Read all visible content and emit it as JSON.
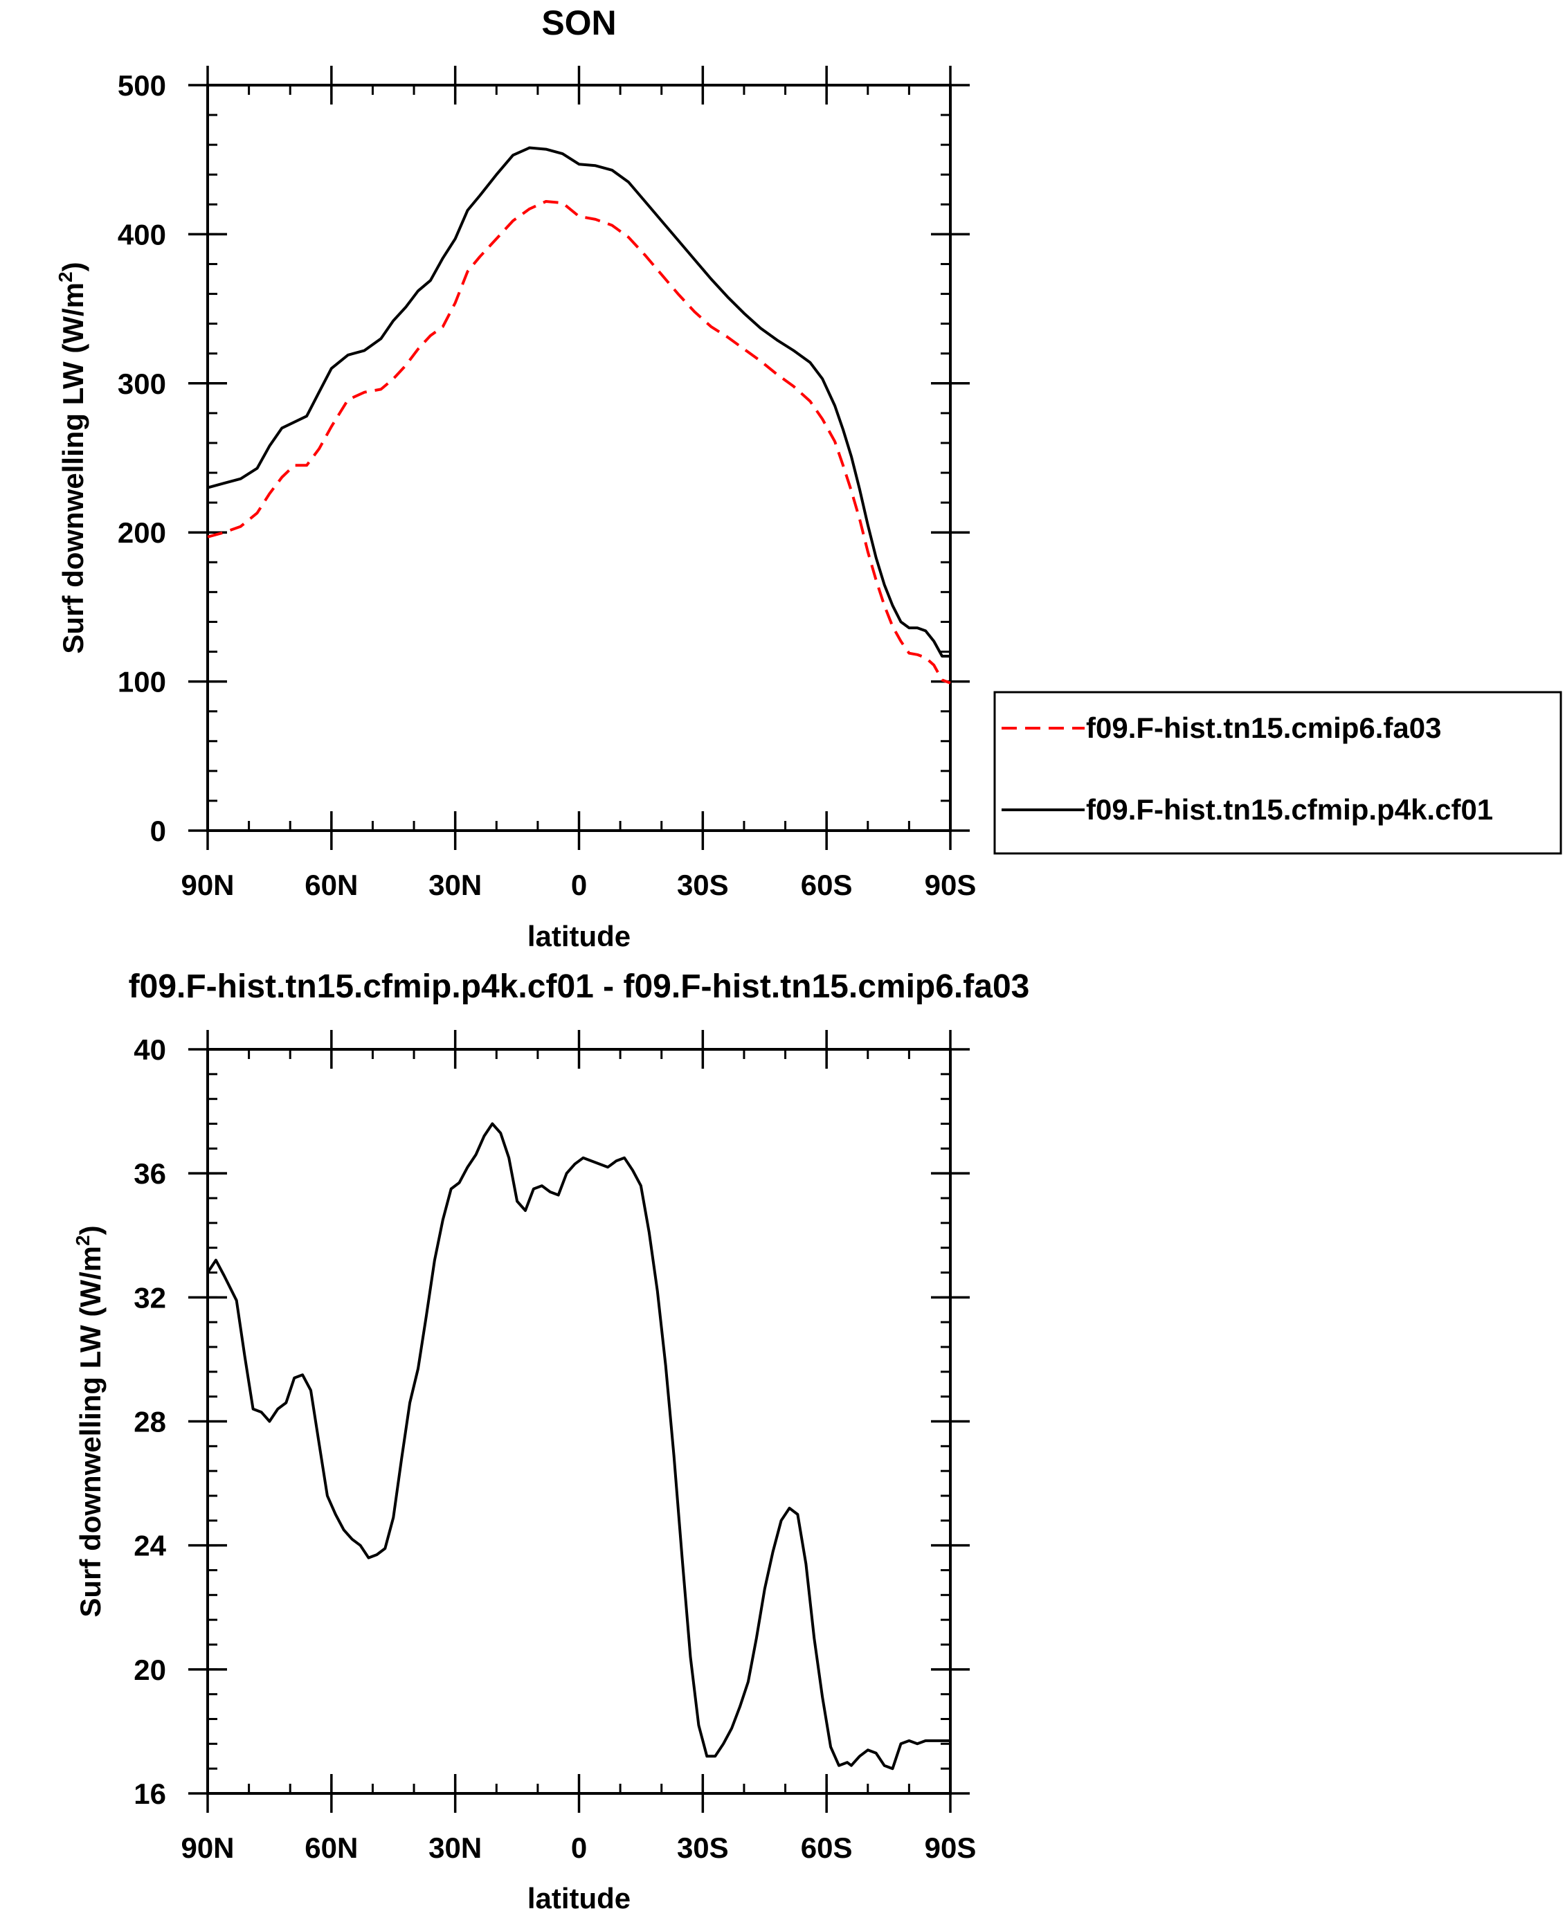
{
  "chart_data": [
    {
      "type": "line",
      "title": "SON",
      "xlabel": "latitude",
      "ylabel_main": "Surf downwelling LW (W/m",
      "ylabel_sup": "2",
      "ylabel_close": ")",
      "xlim": [
        90,
        -90
      ],
      "ylim": [
        0,
        500
      ],
      "xticks": [
        90,
        60,
        30,
        0,
        -30,
        -60,
        -90
      ],
      "xtick_labels": [
        "90N",
        "60N",
        "30N",
        "0",
        "30S",
        "60S",
        "90S"
      ],
      "yticks": [
        0,
        100,
        200,
        300,
        400,
        500
      ],
      "ytick_labels": [
        "0",
        "100",
        "200",
        "300",
        "400",
        "500"
      ],
      "legend_position": "right-outside",
      "series": [
        {
          "name": "f09.F-hist.tn15.cmip6.fa03",
          "color": "#ff0000",
          "dash": "dashed",
          "x": [
            90,
            86,
            82,
            78,
            75,
            72,
            69,
            66,
            63,
            60,
            56,
            52,
            48,
            45,
            42,
            39,
            36,
            33,
            30,
            27,
            24,
            20,
            16,
            12,
            8,
            4,
            0,
            -4,
            -8,
            -12,
            -16,
            -20,
            -24,
            -28,
            -32,
            -36,
            -40,
            -44,
            -48,
            -52,
            -56,
            -59,
            -62,
            -64,
            -66,
            -68,
            -70,
            -72,
            -74,
            -76,
            -78,
            -80,
            -82,
            -84,
            -86,
            -88,
            -90
          ],
          "y": [
            197,
            200,
            204,
            213,
            226,
            237,
            245,
            245,
            256,
            271,
            289,
            294,
            296,
            303,
            312,
            323,
            332,
            338,
            354,
            375,
            385,
            397,
            409,
            417,
            422,
            421,
            412,
            410,
            406,
            398,
            386,
            373,
            360,
            348,
            338,
            331,
            323,
            315,
            306,
            298,
            288,
            276,
            261,
            245,
            228,
            209,
            187,
            168,
            151,
            137,
            127,
            119,
            118,
            116,
            111,
            101,
            99
          ]
        },
        {
          "name": "f09.F-hist.tn15.cfmip.p4k.cf01",
          "color": "#000000",
          "dash": "solid",
          "x": [
            90,
            86,
            82,
            78,
            75,
            72,
            69,
            66,
            63,
            60,
            56,
            52,
            48,
            45,
            42,
            39,
            36,
            33,
            30,
            27,
            24,
            20,
            16,
            12,
            8,
            4,
            0,
            -4,
            -8,
            -12,
            -16,
            -20,
            -24,
            -28,
            -32,
            -36,
            -40,
            -44,
            -48,
            -52,
            -56,
            -59,
            -62,
            -64,
            -66,
            -68,
            -70,
            -72,
            -74,
            -76,
            -78,
            -80,
            -82,
            -84,
            -86,
            -88,
            -90
          ],
          "y": [
            230,
            233,
            236,
            243,
            258,
            270,
            274,
            278,
            294,
            310,
            319,
            322,
            330,
            342,
            351,
            362,
            369,
            384,
            397,
            416,
            426,
            440,
            453,
            458,
            457,
            454,
            447,
            446,
            443,
            435,
            422,
            409,
            396,
            383,
            370,
            358,
            347,
            337,
            329,
            322,
            314,
            303,
            285,
            269,
            251,
            229,
            205,
            183,
            165,
            151,
            140,
            136,
            136,
            134,
            127,
            117,
            117
          ]
        }
      ]
    },
    {
      "type": "line",
      "title": "f09.F-hist.tn15.cfmip.p4k.cf01 - f09.F-hist.tn15.cmip6.fa03",
      "xlabel": "latitude",
      "ylabel_main": "Surf downwelling LW (W/m",
      "ylabel_sup": "2",
      "ylabel_close": ")",
      "xlim": [
        90,
        -90
      ],
      "ylim": [
        16,
        40
      ],
      "xticks": [
        90,
        60,
        30,
        0,
        -30,
        -60,
        -90
      ],
      "xtick_labels": [
        "90N",
        "60N",
        "30N",
        "0",
        "30S",
        "60S",
        "90S"
      ],
      "yticks": [
        16,
        20,
        24,
        28,
        32,
        36,
        40
      ],
      "ytick_labels": [
        "16",
        "20",
        "24",
        "28",
        "32",
        "36",
        "40"
      ],
      "series": [
        {
          "color": "#000000",
          "dash": "solid",
          "x": [
            90,
            88,
            86,
            83,
            81,
            79,
            77,
            75,
            73,
            71,
            69,
            67,
            65,
            63,
            61,
            59,
            57,
            55,
            53,
            51,
            49,
            47,
            45,
            43,
            41,
            39,
            37,
            35,
            33,
            31,
            29,
            27,
            25,
            23,
            21,
            19,
            17,
            15,
            13,
            11,
            9,
            7,
            5,
            3,
            1,
            -1,
            -3,
            -5,
            -7,
            -9,
            -11,
            -13,
            -15,
            -17,
            -19,
            -21,
            -23,
            -25,
            -27,
            -29,
            -31,
            -33,
            -35,
            -37,
            -39,
            -41,
            -43,
            -45,
            -47,
            -49,
            -51,
            -53,
            -55,
            -57,
            -59,
            -61,
            -63,
            -65,
            -66,
            -68,
            -70,
            -72,
            -74,
            -76,
            -78,
            -80,
            -82,
            -84,
            -86,
            -88,
            -90
          ],
          "y": [
            32.8,
            33.2,
            32.7,
            31.9,
            30.1,
            28.4,
            28.3,
            28.0,
            28.4,
            28.6,
            29.4,
            29.5,
            29.0,
            27.3,
            25.6,
            25.0,
            24.5,
            24.2,
            24.0,
            23.6,
            23.7,
            23.9,
            24.9,
            26.8,
            28.6,
            29.7,
            31.4,
            33.2,
            34.5,
            35.5,
            35.7,
            36.2,
            36.6,
            37.2,
            37.6,
            37.3,
            36.5,
            35.1,
            34.8,
            35.5,
            35.6,
            35.4,
            35.3,
            36.0,
            36.3,
            36.5,
            36.4,
            36.3,
            36.2,
            36.4,
            36.5,
            36.1,
            35.6,
            34.1,
            32.2,
            29.8,
            26.9,
            23.6,
            20.4,
            18.2,
            17.2,
            17.2,
            17.6,
            18.1,
            18.8,
            19.6,
            21.0,
            22.6,
            23.8,
            24.8,
            25.2,
            25.0,
            23.4,
            21.0,
            19.1,
            17.5,
            16.9,
            17.0,
            16.9,
            17.2,
            17.4,
            17.3,
            16.9,
            16.8,
            17.6,
            17.7,
            17.6,
            17.7,
            17.7,
            17.7,
            17.7
          ]
        }
      ]
    }
  ]
}
